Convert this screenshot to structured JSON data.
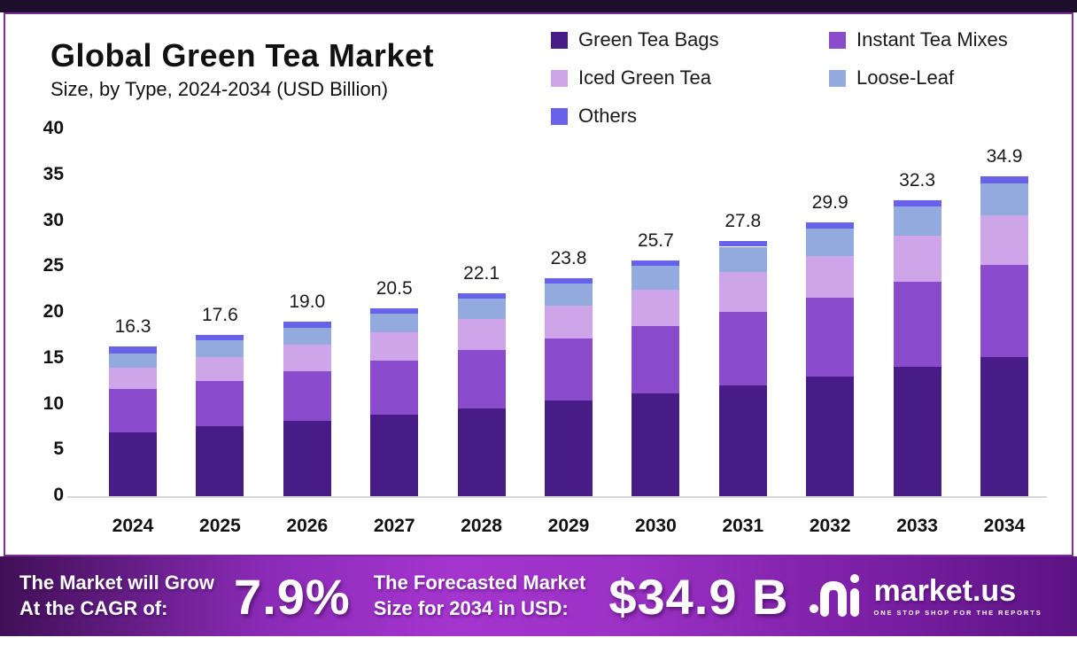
{
  "title": "Global Green Tea Market",
  "subtitle": "Size, by Type, 2024-2034 (USD Billion)",
  "legend": [
    {
      "label": "Green Tea Bags",
      "color": "#471c87"
    },
    {
      "label": "Instant Tea Mixes",
      "color": "#8a4ccd"
    },
    {
      "label": "Iced Green Tea",
      "color": "#cda5e8"
    },
    {
      "label": "Loose-Leaf",
      "color": "#92aadd"
    },
    {
      "label": "Others",
      "color": "#6862ea"
    }
  ],
  "chart_data": {
    "type": "bar",
    "stacked": true,
    "title": "Global Green Tea Market Size, by Type, 2024-2034 (USD Billion)",
    "categories": [
      "2024",
      "2025",
      "2026",
      "2027",
      "2028",
      "2029",
      "2030",
      "2031",
      "2032",
      "2033",
      "2034"
    ],
    "totals": [
      16.3,
      17.6,
      19.0,
      20.5,
      22.1,
      23.8,
      25.7,
      27.8,
      29.9,
      32.3,
      34.9
    ],
    "total_labels": [
      "16.3",
      "17.6",
      "19.0",
      "20.5",
      "22.1",
      "23.8",
      "25.7",
      "27.8",
      "29.9",
      "32.3",
      "34.9"
    ],
    "series": [
      {
        "name": "Green Tea Bags",
        "color": "#471c87",
        "values": [
          7.0,
          7.6,
          8.2,
          8.9,
          9.6,
          10.4,
          11.2,
          12.1,
          13.0,
          14.1,
          15.2
        ]
      },
      {
        "name": "Instant Tea Mixes",
        "color": "#8a4ccd",
        "values": [
          4.7,
          5.0,
          5.4,
          5.9,
          6.3,
          6.8,
          7.4,
          8.0,
          8.6,
          9.3,
          10.0
        ]
      },
      {
        "name": "Iced Green Tea",
        "color": "#cda5e8",
        "values": [
          2.3,
          2.6,
          2.9,
          3.1,
          3.4,
          3.6,
          3.9,
          4.3,
          4.6,
          5.0,
          5.4
        ]
      },
      {
        "name": "Loose-Leaf",
        "color": "#92aadd",
        "values": [
          1.6,
          1.8,
          1.9,
          2.0,
          2.2,
          2.4,
          2.6,
          2.8,
          3.0,
          3.2,
          3.5
        ]
      },
      {
        "name": "Others",
        "color": "#6862ea",
        "values": [
          0.7,
          0.6,
          0.6,
          0.6,
          0.6,
          0.6,
          0.6,
          0.6,
          0.7,
          0.7,
          0.8
        ]
      }
    ],
    "xlabel": "",
    "ylabel": "",
    "ylim": [
      0,
      40
    ],
    "y_ticks": [
      0,
      5,
      10,
      15,
      20,
      25,
      30,
      35,
      40
    ],
    "grid": false,
    "legend_position": "top-right"
  },
  "footer": {
    "cagr_label_line1": "The Market will Grow",
    "cagr_label_line2": "At the CAGR of:",
    "cagr_value": "7.9%",
    "forecast_label_line1": "The Forecasted Market",
    "forecast_label_line2": "Size for 2034 in USD:",
    "forecast_value": "$34.9 B",
    "brand_name": "market.us",
    "brand_tagline": "ONE STOP SHOP FOR THE REPORTS"
  },
  "colors": {
    "card_border": "#7b2f95",
    "top_strip": "#1e0f2d",
    "baseline": "#d8d8d8",
    "axis_text": "#111111",
    "footer_gradient_start": "#400f56",
    "footer_gradient_mid": "#a435ce",
    "footer_gradient_end": "#5c1383"
  }
}
